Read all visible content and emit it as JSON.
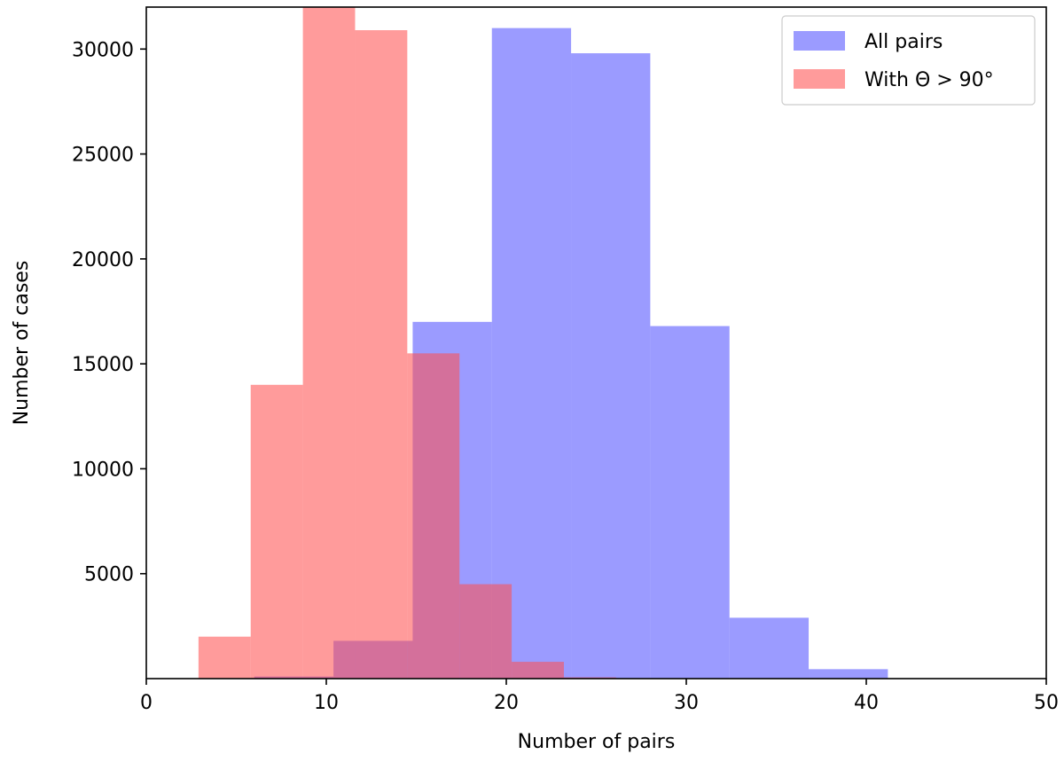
{
  "chart_data": {
    "type": "bar",
    "subtype": "overlapping-histogram",
    "title": "",
    "xlabel": "Number of pairs",
    "ylabel": "Number of cases",
    "xlim": [
      0,
      50
    ],
    "ylim": [
      0,
      32000
    ],
    "xticks": [
      "0",
      "10",
      "20",
      "30",
      "40",
      "50"
    ],
    "yticks": [
      "5000",
      "10000",
      "15000",
      "20000",
      "25000",
      "30000"
    ],
    "grid": false,
    "legend_position": "top-right",
    "series": [
      {
        "name": "All pairs",
        "color": "#5050ff",
        "opacity": 0.57,
        "bins": [
          {
            "x0": 1.6,
            "x1": 6.0,
            "value": 20
          },
          {
            "x0": 6.0,
            "x1": 10.4,
            "value": 100
          },
          {
            "x0": 10.4,
            "x1": 14.8,
            "value": 1800
          },
          {
            "x0": 14.8,
            "x1": 19.2,
            "value": 17000
          },
          {
            "x0": 19.2,
            "x1": 23.6,
            "value": 31000
          },
          {
            "x0": 23.6,
            "x1": 28.0,
            "value": 29800
          },
          {
            "x0": 28.0,
            "x1": 32.4,
            "value": 16800
          },
          {
            "x0": 32.4,
            "x1": 36.8,
            "value": 2900
          },
          {
            "x0": 36.8,
            "x1": 41.2,
            "value": 450
          }
        ]
      },
      {
        "name": "With Θ > 90°",
        "color": "#ff5050",
        "opacity": 0.57,
        "bins": [
          {
            "x0": 2.9,
            "x1": 5.8,
            "value": 2000
          },
          {
            "x0": 5.8,
            "x1": 8.7,
            "value": 14000
          },
          {
            "x0": 8.7,
            "x1": 11.6,
            "value": 32500
          },
          {
            "x0": 11.6,
            "x1": 14.5,
            "value": 30900
          },
          {
            "x0": 14.5,
            "x1": 17.4,
            "value": 15500
          },
          {
            "x0": 17.4,
            "x1": 20.3,
            "value": 4500
          },
          {
            "x0": 20.3,
            "x1": 23.2,
            "value": 800
          },
          {
            "x0": 23.2,
            "x1": 26.1,
            "value": 60
          }
        ]
      }
    ]
  }
}
